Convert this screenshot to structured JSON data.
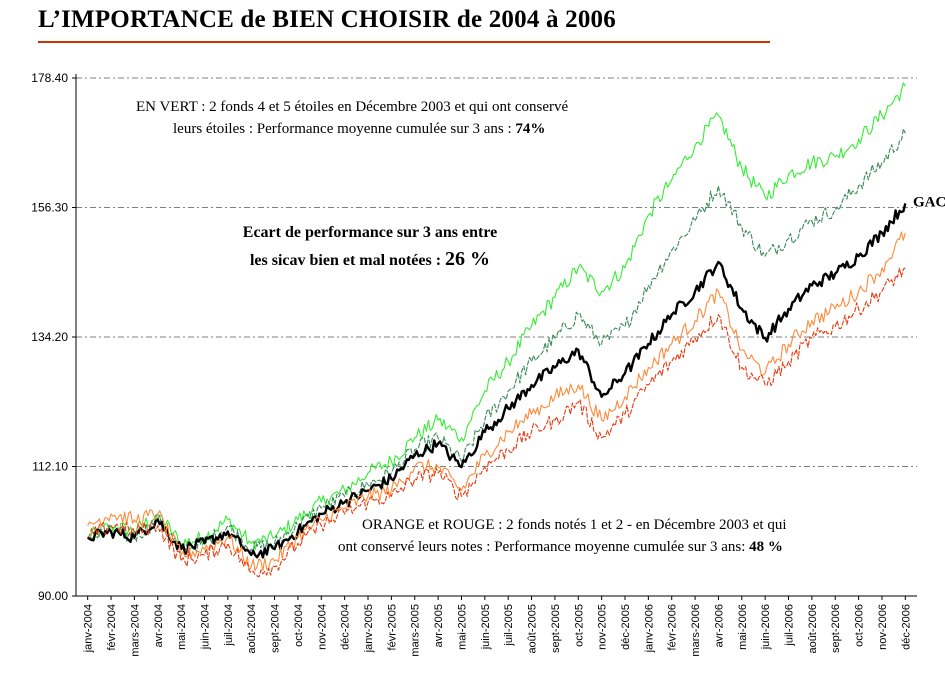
{
  "title": "L’IMPORTANCE de BIEN CHOISIR de 2004 à 2006",
  "annotations": {
    "green_line1": "EN VERT  : 2 fonds 4 et 5 étoiles en Décembre 2003 et qui ont conservé",
    "green_line2_prefix": "leurs étoiles :  Performance moyenne cumulée sur 3 ans : ",
    "green_line2_value": "74%",
    "gap_line1": "Ecart de performance sur 3 ans  entre",
    "gap_line2_prefix": "les sicav bien et mal notées : ",
    "gap_line2_value": "26 %",
    "orange_line1": "ORANGE et  ROUGE : 2 fonds notés 1 et 2 -  en Décembre 2003 et qui",
    "orange_line2_prefix": "ont conservé leurs notes :  Performance moyenne cumulée sur 3 ans: ",
    "orange_line2_value": "48 %"
  },
  "chart_data": {
    "type": "line",
    "title": "L’IMPORTANCE de BIEN CHOISIR de 2004 à 2006",
    "xlabel": "",
    "ylabel": "",
    "ylim": [
      90.0,
      178.4
    ],
    "yticks": [
      "90.00",
      "112.10",
      "134.20",
      "156.30",
      "178.40"
    ],
    "categories": [
      "janv-2004",
      "févr-2004",
      "mars-2004",
      "avr-2004",
      "mai-2004",
      "juin-2004",
      "juil-2004",
      "août-2004",
      "sept-2004",
      "oct-2004",
      "nov-2004",
      "déc-2004",
      "janv-2005",
      "févr-2005",
      "mars-2005",
      "avr-2005",
      "mai-2005",
      "juin-2005",
      "juil-2005",
      "août-2005",
      "sept-2005",
      "oct-2005",
      "nov-2005",
      "déc-2005",
      "janv-2006",
      "févr-2006",
      "mars-2006",
      "avr-2006",
      "mai-2006",
      "juin-2006",
      "juil-2006",
      "août-2006",
      "sept-2006",
      "oct-2006",
      "nov-2006",
      "déc-2006"
    ],
    "grid": "horizontal dashed",
    "series": [
      {
        "name": "",
        "color": "#33ee33",
        "values": [
          100,
          102,
          101,
          104,
          99,
          100,
          103,
          99,
          100,
          103,
          106,
          108,
          111,
          113,
          117,
          120,
          117,
          125,
          130,
          136,
          141,
          146,
          142,
          146,
          155,
          161,
          167,
          172,
          163,
          158,
          162,
          164,
          165,
          168,
          172,
          177
        ]
      },
      {
        "name": "",
        "color": "#3a8a5a",
        "values": [
          100,
          101,
          100,
          103,
          98,
          99,
          102,
          98,
          99,
          102,
          105,
          107,
          109,
          111,
          115,
          117,
          113,
          120,
          125,
          130,
          134,
          138,
          133,
          136,
          143,
          149,
          154,
          160,
          153,
          148,
          151,
          154,
          156,
          160,
          164,
          169
        ]
      },
      {
        "name": "GAC",
        "color": "#000000",
        "values": [
          100,
          101,
          100,
          103,
          98,
          99,
          101,
          97,
          98,
          101,
          104,
          106,
          108,
          110,
          114,
          116,
          112,
          118,
          122,
          126,
          129,
          132,
          124,
          128,
          133,
          138,
          142,
          147,
          139,
          134,
          139,
          143,
          145,
          148,
          152,
          157
        ]
      },
      {
        "name": "",
        "color": "#ff8a3a",
        "values": [
          102,
          104,
          103,
          104,
          97,
          98,
          100,
          95,
          96,
          100,
          103,
          105,
          107,
          108,
          112,
          112,
          108,
          114,
          118,
          121,
          124,
          126,
          120,
          124,
          129,
          133,
          137,
          142,
          132,
          128,
          133,
          137,
          139,
          142,
          146,
          152
        ]
      },
      {
        "name": "",
        "color": "#e83a10",
        "values": [
          100,
          102,
          101,
          102,
          96,
          97,
          99,
          94,
          95,
          99,
          102,
          104,
          106,
          107,
          110,
          111,
          107,
          112,
          115,
          118,
          120,
          123,
          117,
          121,
          126,
          130,
          134,
          138,
          129,
          126,
          130,
          134,
          136,
          139,
          142,
          146
        ]
      }
    ]
  }
}
